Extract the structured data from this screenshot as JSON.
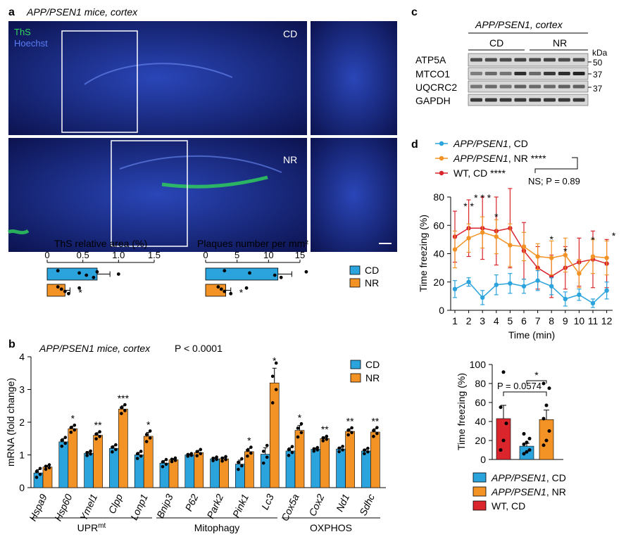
{
  "panel_a": {
    "letter": "a",
    "title": "APP/PSEN1 mice, cortex",
    "stain_ths": "ThS",
    "stain_hoechst": "Hoechst",
    "label_cd": "CD",
    "label_nr": "NR"
  },
  "panel_b": {
    "letter": "b",
    "title": "APP/PSEN1 mice, cortex",
    "pvalue": "P < 0.0001",
    "group_labels": [
      "UPRmt",
      "Mitophagy",
      "OXPHOS"
    ]
  },
  "panel_c": {
    "letter": "c",
    "title": "APP/PSEN1, cortex",
    "group_cd": "CD",
    "group_nr": "NR",
    "unit": "kDa",
    "rows": [
      "ATP5A",
      "MTCO1",
      "UQCRC2",
      "GAPDH"
    ],
    "markers": [
      "50",
      "37",
      "37"
    ]
  },
  "panel_d": {
    "letter": "d",
    "ns_text": "NS; P = 0.89",
    "bar_pvalue": "P = 0.0574"
  },
  "colors": {
    "cd": "#2ba3dc",
    "nr": "#f39325",
    "wt": "#d9252b"
  },
  "chart_data": [
    {
      "type": "bar",
      "title": "ThS relative area (%)",
      "categories": [
        "CD",
        "NR"
      ],
      "values": [
        0.7,
        0.25
      ],
      "errors": [
        0.18,
        0.07
      ],
      "points": [
        [
          0.15,
          0.45,
          0.55,
          0.65,
          0.7,
          1.0
        ],
        [
          0.15,
          0.2,
          0.25,
          0.3,
          0.45
        ]
      ],
      "sig": [
        "",
        "*"
      ],
      "xlim": [
        0,
        1.5
      ],
      "ticks": [
        "0",
        "0.5",
        "1.0",
        "1.5"
      ]
    },
    {
      "type": "bar",
      "title": "Plaques number per mm²",
      "categories": [
        "CD",
        "NR"
      ],
      "values": [
        11.5,
        3.2
      ],
      "errors": [
        2.2,
        0.8
      ],
      "points": [
        [
          3.0,
          7.0,
          11.0,
          12.0,
          16.0
        ],
        [
          2.0,
          2.5,
          3.0,
          4.0,
          6.5
        ]
      ],
      "sig": [
        "",
        "*"
      ],
      "xlim": [
        0,
        15
      ],
      "ticks": [
        "0",
        "5",
        "10",
        "15"
      ],
      "legend": [
        "CD",
        "NR"
      ]
    },
    {
      "type": "bar",
      "ylabel": "mRNA (fold change)",
      "ylim": [
        0,
        4
      ],
      "yticks": [
        "0",
        "1",
        "2",
        "3",
        "4"
      ],
      "categories": [
        "Hspa9",
        "Hsp60",
        "Ymel1",
        "Clpp",
        "Lonp1",
        "Bnip3",
        "P62",
        "Park2",
        "Pink1",
        "Lc3",
        "Cox5a",
        "Cox2",
        "Nd1",
        "Sdhc"
      ],
      "legend": [
        "CD",
        "NR"
      ],
      "series": [
        {
          "name": "CD",
          "values": [
            0.45,
            1.4,
            1.05,
            1.2,
            1.0,
            0.75,
            1.0,
            0.88,
            0.72,
            1.02,
            1.12,
            1.17,
            1.18,
            1.12
          ]
        },
        {
          "name": "NR",
          "values": [
            0.63,
            1.8,
            1.6,
            2.4,
            1.57,
            0.85,
            1.07,
            0.88,
            1.1,
            3.2,
            1.75,
            1.5,
            1.72,
            1.7
          ]
        }
      ],
      "errors_cd": [
        0.1,
        0.1,
        0.05,
        0.08,
        0.08,
        0.08,
        0.03,
        0.04,
        0.12,
        0.2,
        0.1,
        0.04,
        0.06,
        0.06
      ],
      "errors_nr": [
        0.05,
        0.08,
        0.08,
        0.1,
        0.12,
        0.04,
        0.07,
        0.05,
        0.1,
        0.45,
        0.15,
        0.05,
        0.08,
        0.1
      ],
      "sig": [
        "",
        "*",
        "**",
        "***",
        "*",
        "",
        "",
        "",
        "*",
        "*",
        "*",
        "**",
        "**",
        "**"
      ]
    },
    {
      "type": "line",
      "xlabel": "Time (min)",
      "ylabel": "Time freezing (%)",
      "ylim": [
        0,
        80
      ],
      "yticks": [
        "0",
        "20",
        "40",
        "60",
        "80"
      ],
      "x": [
        1,
        2,
        3,
        4,
        5,
        6,
        7,
        8,
        9,
        10,
        11,
        12
      ],
      "legend_names": [
        "APP/PSEN1, CD",
        "APP/PSEN1, NR",
        "WT, CD"
      ],
      "legend_sig": [
        "",
        "****",
        "****"
      ],
      "series": [
        {
          "name": "APP/PSEN1, CD",
          "values": [
            15,
            20,
            9,
            18,
            19,
            17,
            21,
            17,
            8,
            11,
            5,
            14
          ],
          "errors": [
            6,
            3,
            5,
            7,
            7,
            5,
            7,
            6,
            5,
            4,
            3,
            6
          ]
        },
        {
          "name": "APP/PSEN1, NR",
          "values": [
            43,
            51,
            55,
            52,
            46,
            45,
            38,
            37,
            39,
            26,
            38,
            37
          ],
          "errors": [
            13,
            10,
            11,
            12,
            15,
            10,
            9,
            12,
            12,
            10,
            12,
            12
          ]
        },
        {
          "name": "WT, CD",
          "values": [
            52,
            58,
            58,
            56,
            58,
            42,
            30,
            24,
            30,
            34,
            36,
            33
          ],
          "errors": [
            18,
            20,
            22,
            24,
            28,
            20,
            15,
            15,
            15,
            17,
            20,
            17
          ]
        }
      ],
      "sig": [
        "",
        "* *",
        "* * *",
        "*",
        "",
        "",
        "",
        "*",
        "*",
        "",
        "*",
        "*"
      ]
    },
    {
      "type": "bar",
      "ylabel": "Time freezing (%)",
      "ylim": [
        0,
        100
      ],
      "yticks": [
        "0",
        "20",
        "40",
        "60",
        "80",
        "100"
      ],
      "categories": [
        "WT, CD",
        "APP/PSEN1, CD",
        "APP/PSEN1, NR"
      ],
      "values": [
        43,
        14,
        42
      ],
      "errors": [
        14,
        3,
        10
      ],
      "points": [
        [
          10,
          20,
          38,
          55,
          92
        ],
        [
          6,
          8,
          10,
          16,
          18,
          22,
          27
        ],
        [
          15,
          20,
          30,
          43,
          57,
          75,
          80
        ]
      ],
      "sig": [
        "P = 0.0574",
        "*"
      ],
      "legend": [
        "APP/PSEN1, CD",
        "APP/PSEN1, NR",
        "WT, CD"
      ]
    }
  ]
}
